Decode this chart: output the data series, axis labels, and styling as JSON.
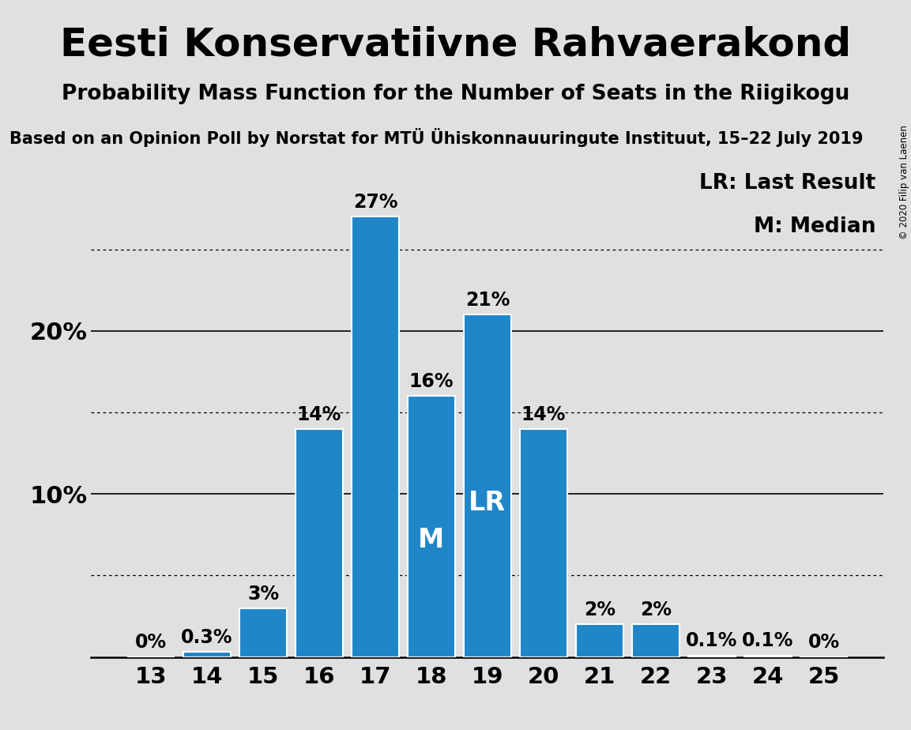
{
  "title": "Eesti Konservatiivne Rahvaerakond",
  "subtitle": "Probability Mass Function for the Number of Seats in the Riigikogu",
  "source": "Based on an Opinion Poll by Norstat for MTÜ Ühiskonnauuringute Instituut, 15–22 July 2019",
  "copyright": "© 2020 Filip van Laenen",
  "categories": [
    13,
    14,
    15,
    16,
    17,
    18,
    19,
    20,
    21,
    22,
    23,
    24,
    25
  ],
  "values": [
    0.0,
    0.3,
    3.0,
    14.0,
    27.0,
    16.0,
    21.0,
    14.0,
    2.0,
    2.0,
    0.1,
    0.1,
    0.0
  ],
  "labels": [
    "0%",
    "0.3%",
    "3%",
    "14%",
    "27%",
    "16%",
    "21%",
    "14%",
    "2%",
    "2%",
    "0.1%",
    "0.1%",
    "0%"
  ],
  "bar_color": "#1f86c8",
  "background_color": "#e0e0e0",
  "median_seat": 18,
  "last_result_seat": 19,
  "legend_text": [
    "LR: Last Result",
    "M: Median"
  ],
  "ylim": [
    0,
    30
  ],
  "solid_gridlines": [
    10,
    20
  ],
  "dotted_gridlines": [
    5,
    15,
    25
  ],
  "ylabel_solid": {
    "10": "10%",
    "20": "20%"
  },
  "title_fontsize": 36,
  "subtitle_fontsize": 19,
  "source_fontsize": 15,
  "bar_label_fontsize": 17,
  "tick_fontsize": 21,
  "ylabel_fontsize": 22,
  "legend_fontsize": 19,
  "annotation_fontsize": 24
}
